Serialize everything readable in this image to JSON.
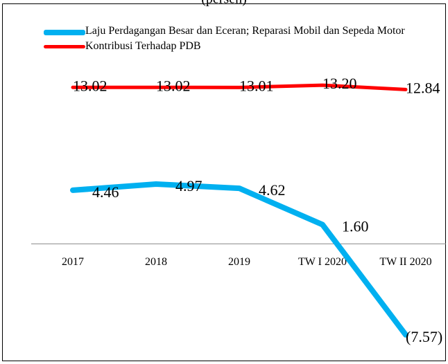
{
  "chart_data": {
    "type": "line",
    "title": "(persen)",
    "categories": [
      "2017",
      "2018",
      "2019",
      "TW I 2020",
      "TW II 2020"
    ],
    "series": [
      {
        "name": "Laju Perdagangan Besar dan Eceran; Reparasi Mobil dan Sepeda Motor",
        "color": "#00b0f0",
        "values": [
          4.46,
          4.97,
          4.62,
          1.6,
          -7.57
        ],
        "value_labels": [
          "4.46",
          "4.97",
          "4.62",
          "1.60",
          "(7.57)"
        ]
      },
      {
        "name": "Kontribusi Terhadap PDB",
        "color": "#ff0000",
        "values": [
          13.02,
          13.02,
          13.01,
          13.2,
          12.84
        ],
        "value_labels": [
          "13.02",
          "13.02",
          "13.01",
          "13.20",
          "12.84"
        ]
      }
    ],
    "ylim": [
      -10,
      20
    ],
    "legend": "top-left"
  }
}
